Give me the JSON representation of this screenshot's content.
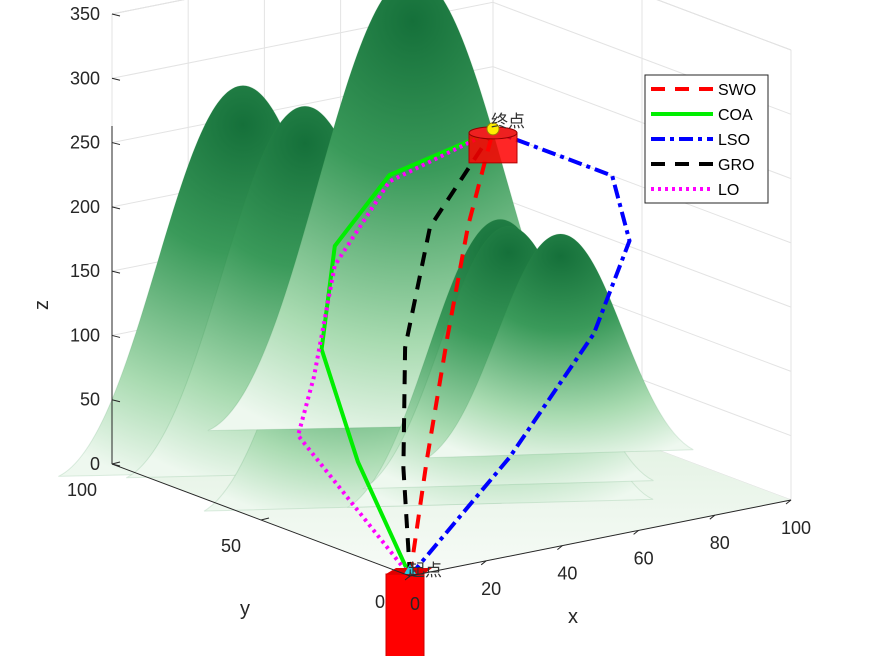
{
  "chart_data": {
    "type": "surface",
    "xlabel": "x",
    "ylabel": "y",
    "zlabel": "z",
    "xlim": [
      0,
      100
    ],
    "ylim": [
      0,
      100
    ],
    "zlim": [
      0,
      350
    ],
    "xticks": [
      "0",
      "20",
      "40",
      "60",
      "80",
      "100"
    ],
    "yticks": [
      "0",
      "50",
      "100"
    ],
    "zticks": [
      "0",
      "50",
      "100",
      "150",
      "200",
      "250",
      "300",
      "350"
    ],
    "grid": true,
    "legend_position": "top-right",
    "colormap": [
      "#ffffff",
      "#a8d8ae",
      "#2e8b4c",
      "#126b35"
    ],
    "peaks": [
      {
        "x": 25,
        "y": 88,
        "z": 290
      },
      {
        "x": 35,
        "y": 80,
        "z": 275
      },
      {
        "x": 75,
        "y": 95,
        "z": 340
      },
      {
        "x": 55,
        "y": 40,
        "z": 210
      },
      {
        "x": 65,
        "y": 50,
        "z": 190
      },
      {
        "x": 28,
        "y": 55,
        "z": 200
      },
      {
        "x": 88,
        "y": 62,
        "z": 160
      }
    ],
    "start": {
      "label": "起点",
      "x": 0,
      "y": 0,
      "z": 0
    },
    "goal": {
      "label": "终点",
      "x": 100,
      "y": 100,
      "z": 200
    },
    "series": [
      {
        "name": "SWO",
        "color": "#ff0000",
        "style": "dashed",
        "x": [
          0,
          20,
          45,
          70,
          100
        ],
        "y": [
          0,
          20,
          45,
          70,
          100
        ],
        "z": [
          0,
          60,
          120,
          170,
          200
        ]
      },
      {
        "name": "COA",
        "color": "#00ee00",
        "style": "solid",
        "x": [
          0,
          2,
          12,
          35,
          65,
          100
        ],
        "y": [
          0,
          20,
          45,
          70,
          90,
          100
        ],
        "z": [
          0,
          70,
          130,
          175,
          195,
          200
        ]
      },
      {
        "name": "LSO",
        "color": "#0000ff",
        "style": "dashdot",
        "x": [
          0,
          30,
          60,
          85,
          100,
          100
        ],
        "y": [
          0,
          5,
          15,
          35,
          60,
          100
        ],
        "z": [
          0,
          70,
          140,
          180,
          200,
          200
        ]
      },
      {
        "name": "GRO",
        "color": "#000000",
        "style": "dashed",
        "x": [
          0,
          10,
          30,
          60,
          100
        ],
        "y": [
          0,
          15,
          40,
          70,
          100
        ],
        "z": [
          0,
          65,
          125,
          175,
          200
        ]
      },
      {
        "name": "LO",
        "color": "#ff00ff",
        "style": "dotted",
        "x": [
          0,
          -2,
          10,
          35,
          65,
          100
        ],
        "y": [
          0,
          35,
          45,
          70,
          90,
          100
        ],
        "z": [
          0,
          80,
          110,
          160,
          190,
          200
        ]
      }
    ]
  }
}
